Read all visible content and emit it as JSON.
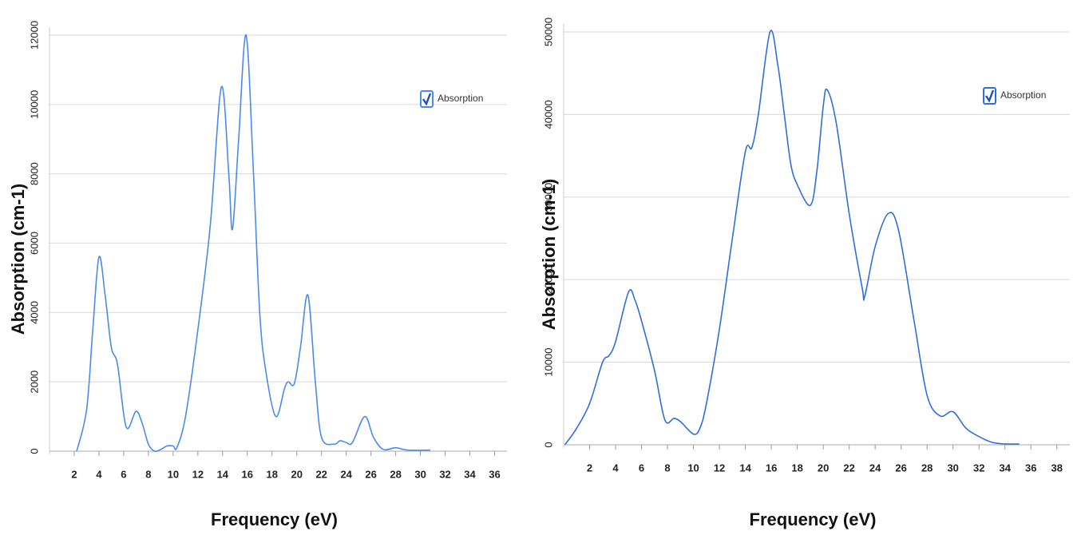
{
  "chart_data": [
    {
      "type": "line",
      "x_label": "Frequency (eV)",
      "y_label": "Absorption (cm-1)",
      "xlim": [
        0,
        37
      ],
      "ylim": [
        0,
        12000
      ],
      "xticks": [
        2,
        4,
        6,
        8,
        10,
        12,
        14,
        16,
        18,
        20,
        22,
        24,
        26,
        28,
        30,
        32,
        34,
        36
      ],
      "yticks": [
        0,
        2000,
        4000,
        6000,
        8000,
        10000,
        12000
      ],
      "grid": true,
      "legend": "upper right",
      "x": [
        2.2,
        3,
        3.5,
        4,
        4.5,
        5,
        5.5,
        6.2,
        7,
        7.5,
        8,
        8.5,
        9,
        9.5,
        10,
        10.3,
        11,
        12,
        13,
        13.9,
        14.5,
        14.8,
        15.3,
        15.9,
        16.5,
        17,
        17.5,
        18.3,
        19,
        19.3,
        19.8,
        20.3,
        20.9,
        21.5,
        22,
        23,
        23.5,
        24,
        24.5,
        25.5,
        26.2,
        27,
        28,
        29,
        30.8
      ],
      "series": [
        {
          "name": "Absorption",
          "color": "#4a8af0",
          "values": [
            0,
            1200,
            3500,
            5600,
            4500,
            3000,
            2500,
            700,
            1150,
            800,
            200,
            0,
            50,
            150,
            150,
            100,
            1000,
            3500,
            6500,
            10500,
            8000,
            6400,
            9000,
            12000,
            8000,
            4000,
            2300,
            1000,
            1800,
            2000,
            1950,
            3000,
            4500,
            2000,
            400,
            200,
            300,
            250,
            250,
            1000,
            400,
            50,
            100,
            30,
            30
          ]
        }
      ]
    },
    {
      "type": "line",
      "x_label": "Frequency (eV)",
      "y_label": "Absorption (cm-1)",
      "xlim": [
        0,
        39
      ],
      "ylim": [
        0,
        50000
      ],
      "xticks": [
        2,
        4,
        6,
        8,
        10,
        12,
        14,
        16,
        18,
        20,
        22,
        24,
        26,
        28,
        30,
        32,
        34,
        36,
        38
      ],
      "yticks": [
        0,
        10000,
        20000,
        30000,
        40000,
        50000
      ],
      "grid": true,
      "legend": "upper right",
      "x": [
        0.1,
        1,
        2,
        3,
        3.5,
        4,
        5,
        5.5,
        6,
        7,
        7.8,
        8.5,
        9,
        10,
        10.5,
        11,
        12,
        13,
        14,
        14.5,
        15,
        15.9,
        16.5,
        17,
        17.5,
        18,
        19,
        19.5,
        20,
        20.3,
        21,
        22,
        23,
        23.2,
        24,
        25,
        25.8,
        27,
        28,
        29,
        30,
        31,
        32,
        33,
        34,
        35.1
      ],
      "series": [
        {
          "name": "Absorption",
          "color": "#2f6ee0",
          "values": [
            0,
            2000,
            5000,
            10000,
            10800,
            12500,
            18500,
            17500,
            15000,
            9000,
            3000,
            3200,
            2800,
            1300,
            2000,
            5000,
            14000,
            25000,
            35500,
            36000,
            40000,
            50000,
            46000,
            40000,
            34000,
            31500,
            29000,
            33000,
            41000,
            43000,
            39000,
            28000,
            19000,
            18000,
            24000,
            28000,
            26000,
            15000,
            6000,
            3500,
            4000,
            2000,
            1000,
            300,
            100,
            100
          ]
        }
      ]
    }
  ]
}
